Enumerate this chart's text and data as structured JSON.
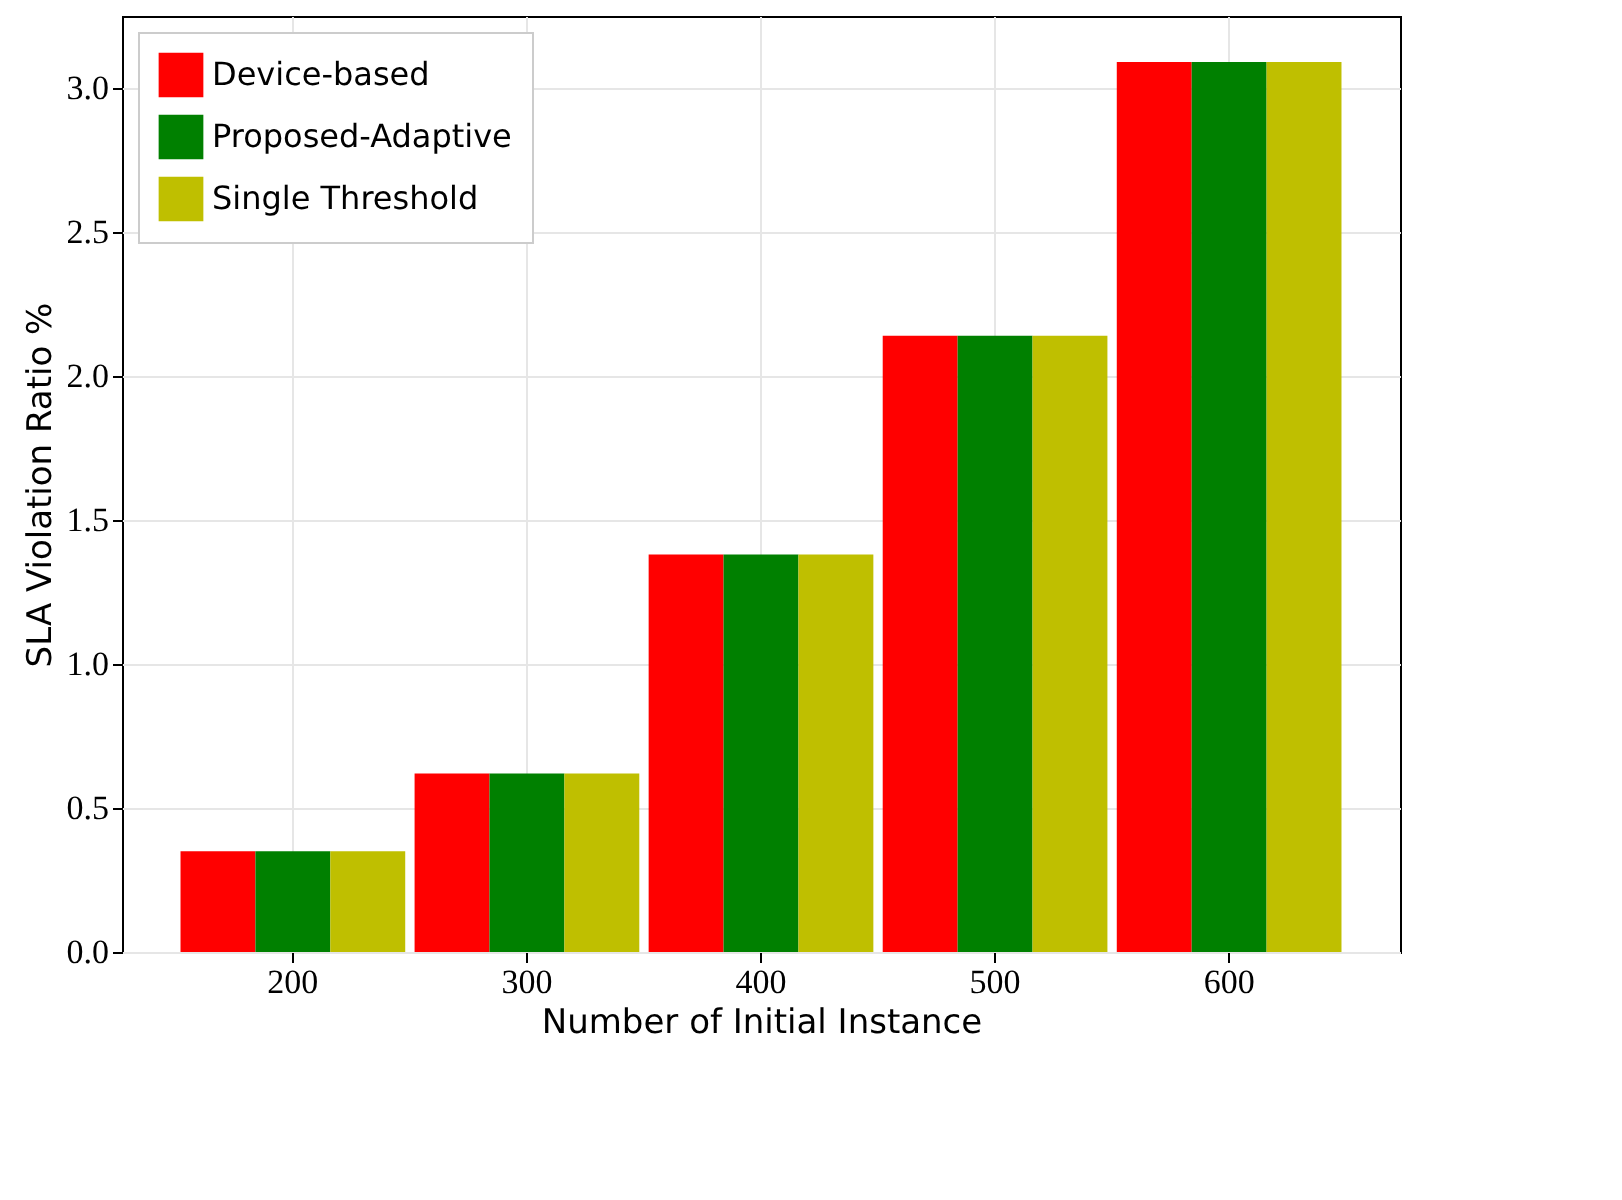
{
  "chart_data": {
    "type": "bar",
    "xlabel": "Number of Initial Instance",
    "ylabel": "SLA Violation Ratio %",
    "categories": [
      "200",
      "300",
      "400",
      "500",
      "600"
    ],
    "series": [
      {
        "name": "Device-based",
        "color": "#ff0000",
        "values": [
          0.35,
          0.62,
          1.38,
          2.14,
          3.09
        ]
      },
      {
        "name": "Proposed-Adaptive",
        "color": "#008000",
        "values": [
          0.35,
          0.62,
          1.38,
          2.14,
          3.09
        ]
      },
      {
        "name": "Single Threshold",
        "color": "#bfbf00",
        "values": [
          0.35,
          0.62,
          1.38,
          2.14,
          3.09
        ]
      }
    ],
    "ylim": [
      0,
      3.25
    ],
    "yticks": [
      {
        "value": 0,
        "label": "0.0"
      },
      {
        "value": 0.5,
        "label": "0.5"
      },
      {
        "value": 1,
        "label": "1.0"
      },
      {
        "value": 1.5,
        "label": "1.5"
      },
      {
        "value": 2,
        "label": "2.0"
      },
      {
        "value": 2.5,
        "label": "2.5"
      },
      {
        "value": 3,
        "label": "3.0"
      }
    ],
    "grid": true,
    "legend": "top left"
  }
}
